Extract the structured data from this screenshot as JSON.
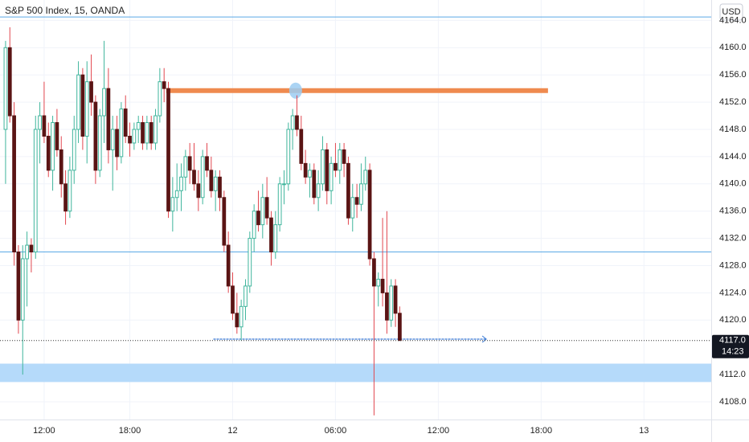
{
  "chart_data": {
    "type": "candlestick",
    "title": "S&P 500 Index, 15, OANDA",
    "currency": "USD",
    "open": [
      4148,
      4160,
      4150,
      4130,
      4120,
      4129,
      4131,
      4130,
      4148,
      4150,
      4147,
      4142,
      4149,
      4145,
      4140,
      4136,
      4142,
      4148,
      4156,
      4147,
      4155,
      4152,
      4142,
      4150,
      4154,
      4145,
      4148,
      4144,
      4151,
      4147,
      4146,
      4148,
      4149,
      4146,
      4149,
      4146,
      4150,
      4155,
      4154,
      4136,
      4138,
      4139,
      4141,
      4144,
      4142,
      4140,
      4138,
      4144,
      4142,
      4139,
      4141,
      4138,
      4131,
      4125,
      4121,
      4119,
      4122,
      4125,
      4132,
      4136,
      4134,
      4138,
      4135,
      4130,
      4134,
      4140,
      4140,
      4148,
      4150,
      4148,
      4143,
      4141,
      4142,
      4138,
      4140,
      4145,
      4139,
      4143,
      4142,
      4145,
      4143,
      4135,
      4138,
      4137,
      4140,
      4142,
      4129,
      4125,
      4126,
      4124,
      4120,
      4125,
      4121
    ],
    "high": [
      4161,
      4163,
      4152,
      4131,
      4131,
      4133,
      4132,
      4150,
      4152,
      4155,
      4149,
      4150,
      4151,
      4147,
      4142,
      4144,
      4150,
      4158,
      4157,
      4158,
      4159,
      4153,
      4151,
      4161,
      4157,
      4150,
      4150,
      4152,
      4153,
      4149,
      4149,
      4150,
      4150,
      4150,
      4150,
      4151,
      4157,
      4157,
      4155,
      4141,
      4143,
      4143,
      4145,
      4146,
      4146,
      4142,
      4145,
      4146,
      4144,
      4142,
      4142,
      4139,
      4133,
      4127,
      4124,
      4123,
      4126,
      4133,
      4137,
      4139,
      4140,
      4141,
      4136,
      4136,
      4141,
      4142,
      4149,
      4151,
      4153,
      4150,
      4145,
      4143,
      4143,
      4142,
      4147,
      4146,
      4144,
      4146,
      4146,
      4146,
      4144,
      4140,
      4140,
      4143,
      4144,
      4143,
      4130,
      4127,
      4135,
      4136,
      4126,
      4126,
      4122
    ],
    "low": [
      4140,
      4149,
      4128,
      4118,
      4112,
      4122,
      4127,
      4129,
      4143,
      4146,
      4141,
      4139,
      4144,
      4138,
      4134,
      4135,
      4140,
      4146,
      4145,
      4143,
      4150,
      4140,
      4141,
      4146,
      4143,
      4139,
      4142,
      4143,
      4146,
      4144,
      4145,
      4146,
      4145,
      4145,
      4145,
      4145,
      4149,
      4152,
      4135,
      4133,
      4136,
      4136,
      4139,
      4140,
      4139,
      4136,
      4137,
      4141,
      4138,
      4136,
      4136,
      4130,
      4124,
      4120,
      4118,
      4117,
      4120,
      4124,
      4130,
      4133,
      4132,
      4134,
      4128,
      4129,
      4133,
      4137,
      4139,
      4145,
      4147,
      4142,
      4140,
      4138,
      4137,
      4136,
      4139,
      4137,
      4137,
      4141,
      4140,
      4141,
      4134,
      4133,
      4135,
      4136,
      4139,
      4128,
      4106,
      4122,
      4122,
      4118,
      4119,
      4119,
      4117
    ],
    "close": [
      4160,
      4150,
      4130,
      4120,
      4129,
      4131,
      4130,
      4148,
      4150,
      4147,
      4142,
      4149,
      4145,
      4140,
      4136,
      4142,
      4148,
      4156,
      4147,
      4155,
      4152,
      4142,
      4150,
      4154,
      4145,
      4148,
      4144,
      4151,
      4147,
      4146,
      4148,
      4149,
      4146,
      4149,
      4146,
      4150,
      4155,
      4154,
      4136,
      4138,
      4139,
      4141,
      4144,
      4142,
      4140,
      4138,
      4144,
      4142,
      4139,
      4141,
      4138,
      4131,
      4125,
      4121,
      4119,
      4122,
      4125,
      4132,
      4136,
      4134,
      4138,
      4135,
      4130,
      4134,
      4140,
      4140,
      4148,
      4150,
      4148,
      4143,
      4141,
      4142,
      4138,
      4140,
      4145,
      4139,
      4143,
      4142,
      4145,
      4143,
      4135,
      4138,
      4137,
      4140,
      4142,
      4129,
      4125,
      4126,
      4124,
      4120,
      4125,
      4121,
      4117
    ],
    "up_color": "#3fb59c",
    "down_color": "#5a1414",
    "down_wick_color": "#e2474f",
    "xlim": [
      -1.3,
      164.7
    ],
    "xticks": [
      {
        "value": 9,
        "label": "12:00"
      },
      {
        "value": 29,
        "label": "18:00"
      },
      {
        "value": 53,
        "label": "12"
      },
      {
        "value": 77,
        "label": "06:00"
      },
      {
        "value": 101,
        "label": "12:00"
      },
      {
        "value": 125,
        "label": "18:00"
      },
      {
        "value": 149,
        "label": "13"
      }
    ],
    "ylim": [
      4105.4,
      4167
    ],
    "yticks": [
      {
        "value": 4108,
        "label": "4108.0"
      },
      {
        "value": 4112,
        "label": "4112.0"
      },
      {
        "value": 4120,
        "label": "4120.0"
      },
      {
        "value": 4124,
        "label": "4124.0"
      },
      {
        "value": 4128,
        "label": "4128.0"
      },
      {
        "value": 4132,
        "label": "4132.0"
      },
      {
        "value": 4136,
        "label": "4136.0"
      },
      {
        "value": 4140,
        "label": "4140.0"
      },
      {
        "value": 4144,
        "label": "4144.0"
      },
      {
        "value": 4148,
        "label": "4148.0"
      },
      {
        "value": 4152,
        "label": "4152.0"
      },
      {
        "value": 4156,
        "label": "4156.0"
      },
      {
        "value": 4160,
        "label": "4160.0"
      },
      {
        "value": 4164,
        "label": "4164.0"
      }
    ],
    "grid": true,
    "hlines": [
      {
        "value": 4164.5,
        "color": "#5aa9e6"
      },
      {
        "value": 4130,
        "color": "#5aa9e6"
      }
    ],
    "segment": {
      "value": 4153.7,
      "x": [
        37.5,
        126.6
      ],
      "color": "#ef8a4f"
    },
    "zone": {
      "range": [
        4110.9,
        4113.6
      ],
      "color": "#b5dafa"
    },
    "arrow": {
      "value": 4117.2,
      "x": [
        48.5,
        112.2
      ],
      "color": "#3b7bd6"
    },
    "marker": {
      "x": 67.7,
      "value": 4153.7,
      "color": "#9ccdf2"
    },
    "last_price": {
      "value": 4117,
      "label": "4117.0"
    },
    "countdown": "14:23"
  }
}
